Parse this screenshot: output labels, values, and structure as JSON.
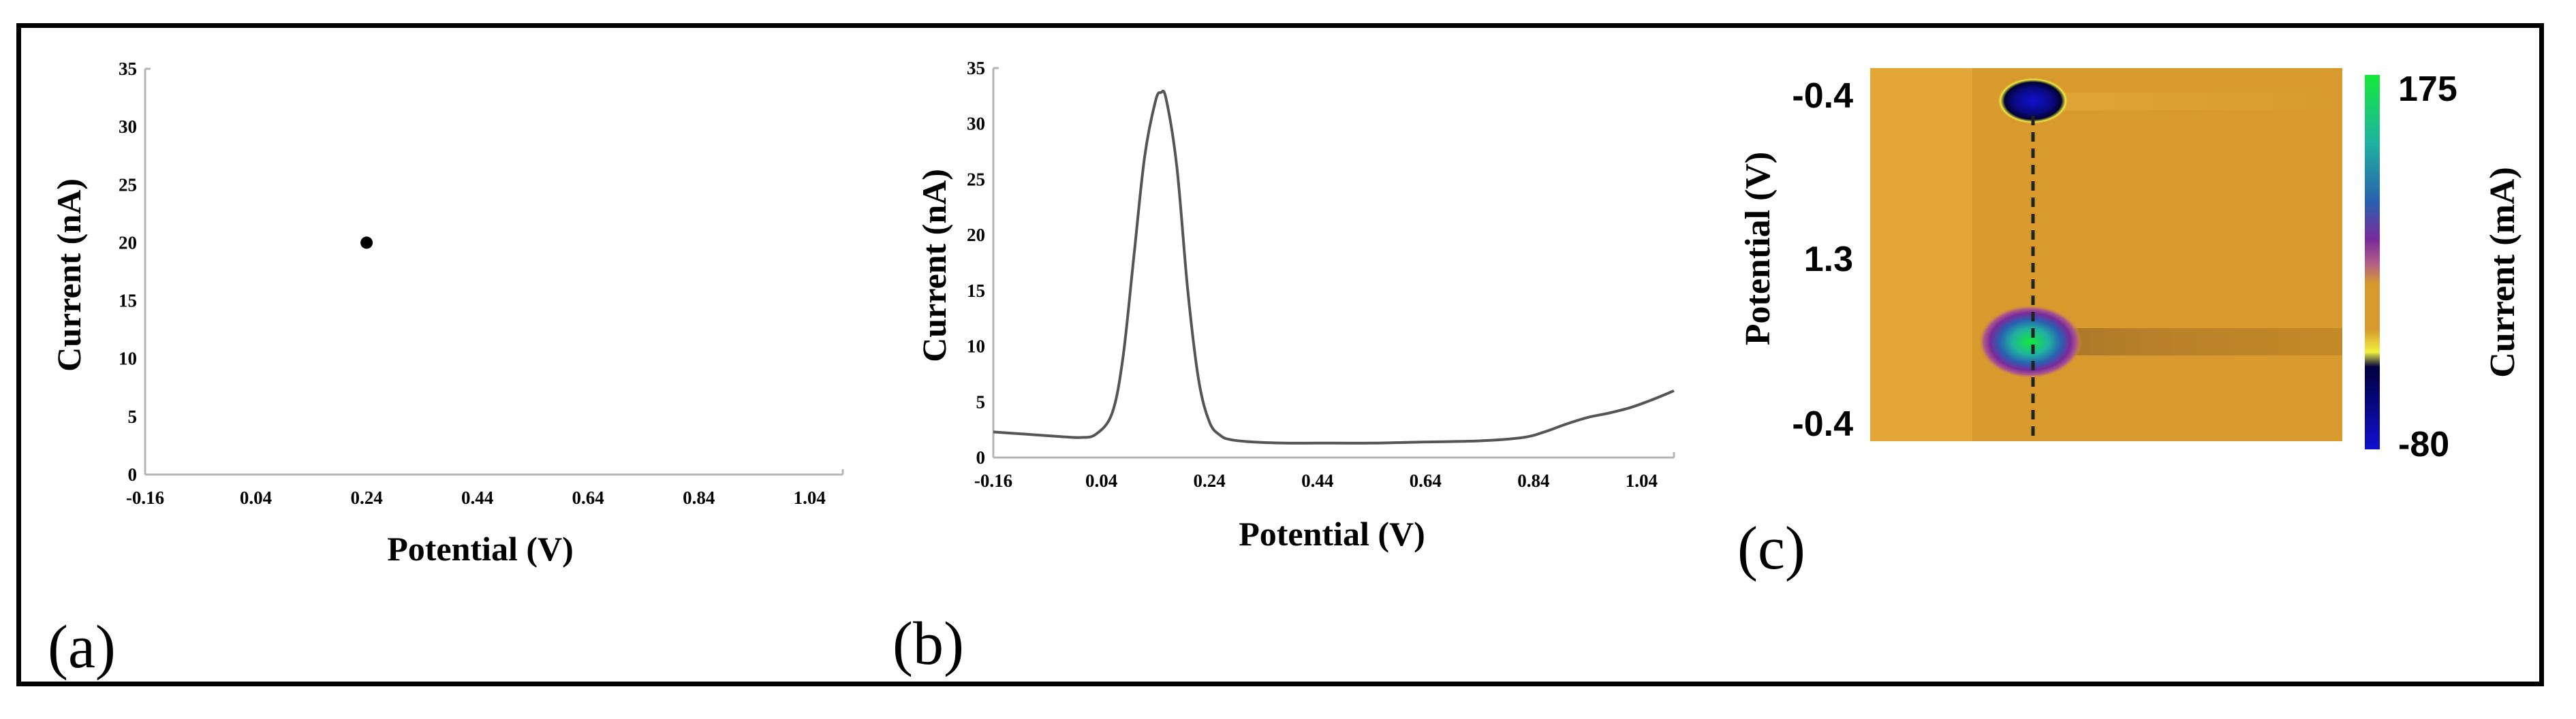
{
  "panel_labels": [
    "(a)",
    "(b)",
    "(c)"
  ],
  "chart_data": [
    {
      "type": "scatter",
      "panel": "(a)",
      "xlabel": "Potential (V)",
      "ylabel": "Current (nA)",
      "x_ticks": [
        "-0.16",
        "0.04",
        "0.24",
        "0.44",
        "0.64",
        "0.84",
        "1.04"
      ],
      "y_ticks": [
        "0",
        "5",
        "10",
        "15",
        "20",
        "25",
        "30",
        "35"
      ],
      "xlim": [
        -0.16,
        1.1
      ],
      "ylim": [
        0,
        35
      ],
      "points": [
        {
          "x": 0.24,
          "y": 20
        }
      ],
      "marker_color": "#000000"
    },
    {
      "type": "line",
      "panel": "(b)",
      "xlabel": "Potential (V)",
      "ylabel": "Current (nA)",
      "x_ticks": [
        "-0.16",
        "0.04",
        "0.24",
        "0.44",
        "0.64",
        "0.84",
        "1.04"
      ],
      "y_ticks": [
        "0",
        "5",
        "10",
        "15",
        "20",
        "25",
        "30",
        "35"
      ],
      "xlim": [
        -0.16,
        1.1
      ],
      "ylim": [
        0,
        35
      ],
      "line_color": "#555555",
      "series": [
        {
          "x": [
            -0.16,
            -0.1,
            -0.04,
            0.0,
            0.03,
            0.06,
            0.08,
            0.1,
            0.12,
            0.14,
            0.15,
            0.16,
            0.18,
            0.2,
            0.22,
            0.24,
            0.26,
            0.28,
            0.32,
            0.38,
            0.44,
            0.54,
            0.64,
            0.74,
            0.82,
            0.86,
            0.9,
            0.94,
            0.98,
            1.02,
            1.06,
            1.1
          ],
          "y": [
            2.3,
            2.1,
            1.9,
            1.8,
            2.1,
            4.0,
            9.0,
            18.0,
            27.0,
            32.0,
            32.8,
            32.2,
            26.0,
            15.0,
            7.0,
            3.2,
            2.0,
            1.6,
            1.4,
            1.3,
            1.3,
            1.3,
            1.4,
            1.5,
            1.8,
            2.3,
            3.0,
            3.6,
            4.0,
            4.5,
            5.2,
            6.0
          ]
        }
      ]
    },
    {
      "type": "heatmap",
      "panel": "(c)",
      "ylabel": "Potential (V)",
      "y_ticks": [
        "-0.4",
        "1.3",
        "-0.4"
      ],
      "colorbar_label": "Current (mA)",
      "colorbar_max": "175",
      "colorbar_min": "-80",
      "background_color": "#d89a2c",
      "colorbar_colors": [
        "#16e83a",
        "#1fb3a0",
        "#2a5fb0",
        "#7a2a9a",
        "#b05a8a",
        "#d89a2c",
        "#f0f040",
        "#000040",
        "#1010d0"
      ]
    }
  ]
}
